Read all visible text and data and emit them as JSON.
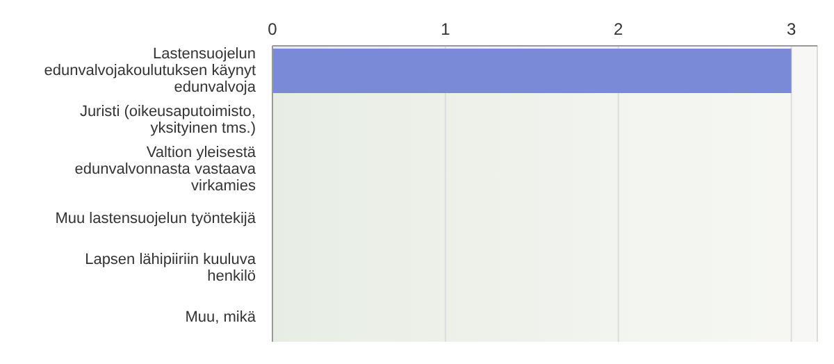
{
  "chart_data": {
    "type": "bar",
    "orientation": "horizontal",
    "categories": [
      "Lastensuojelun edunvalvojakoulutuksen käynyt edunvalvoja",
      "Juristi (oikeusaputoimisto, yksityinen tms.)",
      "Valtion yleisestä edunvalvonnasta vastaava virkamies",
      "Muu lastensuojelun työntekijä",
      "Lapsen lähipiiriin kuuluva henkilö",
      "Muu, mikä"
    ],
    "values": [
      3,
      0,
      0,
      0,
      0,
      0
    ],
    "color": "#7b8ad6",
    "xlim": [
      0,
      3.15
    ],
    "xticks": [
      0,
      1,
      2,
      3
    ],
    "grid": "x"
  }
}
